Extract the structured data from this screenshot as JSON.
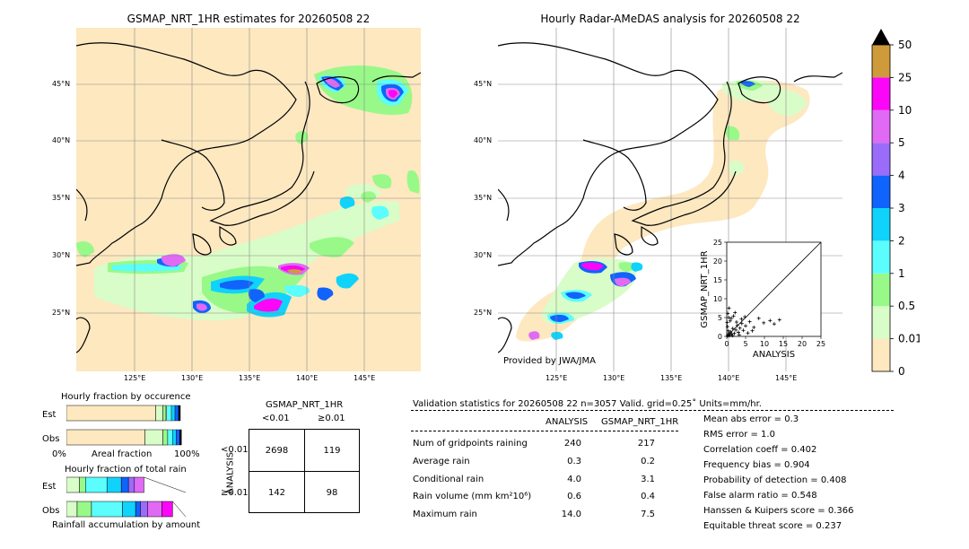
{
  "left_map": {
    "title": "GSMAP_NRT_1HR estimates for 20260508 22",
    "lat_labels": [
      "45°N",
      "40°N",
      "35°N",
      "30°N",
      "25°N"
    ],
    "lon_labels": [
      "125°E",
      "130°E",
      "135°E",
      "140°E",
      "145°E"
    ]
  },
  "right_map": {
    "title": "Hourly Radar-AMeDAS analysis for 20260508 22",
    "lat_labels": [
      "45°N",
      "40°N",
      "35°N",
      "30°N",
      "25°N"
    ],
    "lon_labels": [
      "125°E",
      "130°E",
      "135°E",
      "140°E",
      "145°E"
    ],
    "credit": "Provided by JWA/JMA"
  },
  "colorbar": {
    "labels": [
      "0",
      "0.01",
      "0.5",
      "1",
      "2",
      "3",
      "4",
      "5",
      "10",
      "25",
      "50"
    ],
    "colors": [
      "#fde8c0",
      "#d9fdc8",
      "#98f989",
      "#5bfdfd",
      "#10d3fb",
      "#1063fb",
      "#9a6cf9",
      "#e06af4",
      "#fb06f6",
      "#cf9a3a"
    ],
    "extend_color": "#000000"
  },
  "chart_data": [
    {
      "type": "scatter",
      "xlabel": "ANALYSIS",
      "ylabel": "GSMAP_NRT_1HR",
      "xlim": [
        0,
        25
      ],
      "ylim": [
        0,
        25
      ],
      "xticks": [
        "0",
        "5",
        "10",
        "15",
        "20",
        "25"
      ],
      "yticks": [
        "0",
        "5",
        "10",
        "15",
        "20",
        "25"
      ],
      "diagonal": true,
      "points": [
        [
          0.2,
          0.1
        ],
        [
          0.3,
          0.5
        ],
        [
          0.5,
          0.2
        ],
        [
          0.7,
          0.9
        ],
        [
          0.4,
          1.5
        ],
        [
          0.8,
          0.3
        ],
        [
          1.0,
          1.2
        ],
        [
          1.3,
          0.6
        ],
        [
          1.6,
          2.1
        ],
        [
          2.0,
          0.8
        ],
        [
          2.4,
          1.7
        ],
        [
          2.8,
          2.9
        ],
        [
          3.1,
          1.1
        ],
        [
          3.5,
          2.2
        ],
        [
          4.0,
          3.4
        ],
        [
          4.4,
          1.6
        ],
        [
          5.0,
          2.8
        ],
        [
          6.1,
          3.9
        ],
        [
          7.2,
          2.4
        ],
        [
          8.5,
          4.8
        ],
        [
          9.8,
          3.6
        ],
        [
          11.5,
          4.2
        ],
        [
          12.6,
          3.3
        ],
        [
          14.0,
          4.4
        ],
        [
          0.1,
          3.7
        ],
        [
          0.3,
          6.1
        ],
        [
          0.6,
          7.5
        ],
        [
          1.2,
          4.8
        ],
        [
          1.8,
          5.4
        ],
        [
          2.6,
          3.8
        ],
        [
          0.2,
          2.6
        ],
        [
          1.5,
          0.2
        ],
        [
          3.3,
          0.4
        ],
        [
          5.6,
          0.9
        ],
        [
          0.9,
          4.1
        ],
        [
          2.2,
          6.3
        ],
        [
          4.8,
          5.2
        ],
        [
          6.8,
          1.5
        ],
        [
          0.5,
          5.0
        ],
        [
          3.9,
          4.6
        ]
      ]
    },
    {
      "type": "bar",
      "title": "Hourly fraction by occurence",
      "categories": [
        "Est",
        "Obs"
      ],
      "xlabel": "Areal fraction",
      "x_left_label": "0%",
      "x_right_label": "100%",
      "series": [
        {
          "values": [
            0.749,
            0.659
          ]
        },
        {
          "values": [
            0.06,
            0.15
          ]
        },
        {
          "values": [
            0.025,
            0.04
          ]
        }
      ]
    },
    {
      "type": "bar",
      "title": "Hourly fraction of total rain",
      "categories": [
        "Est",
        "Obs"
      ],
      "xlabel": "Rainfall accumulation by amount",
      "series": [
        {
          "values": [
            0.11,
            0.09
          ]
        },
        {
          "values": [
            0.05,
            0.12
          ]
        },
        {
          "values": [
            0.18,
            0.26
          ]
        },
        {
          "values": [
            0.12,
            0.11
          ]
        },
        {
          "values": [
            0.06,
            0.04
          ]
        },
        {
          "values": [
            0.05,
            0.06
          ]
        },
        {
          "values": [
            0.08,
            0.12
          ]
        },
        {
          "values": [
            0.0,
            0.09
          ]
        }
      ]
    },
    {
      "type": "table",
      "title": "GSMAP_NRT_1HR",
      "col_headers": [
        "<0.01",
        "≥0.01"
      ],
      "row_axis_label": "ANALYSIS",
      "row_headers": [
        "<0.01",
        "≥0.01"
      ],
      "cells": [
        [
          "2698",
          "119"
        ],
        [
          "142",
          "98"
        ]
      ]
    }
  ],
  "validation": {
    "header": "Validation statistics for 20260508 22  n=3057 Valid. grid=0.25˚ Units=mm/hr.",
    "col1": "ANALYSIS",
    "col2": "GSMAP_NRT_1HR",
    "rows": [
      {
        "label": "Num of gridpoints raining",
        "a": "240",
        "g": "217"
      },
      {
        "label": "Average rain",
        "a": "0.3",
        "g": "0.2"
      },
      {
        "label": "Conditional rain",
        "a": "4.0",
        "g": "3.1"
      },
      {
        "label": "Rain volume (mm km²10⁶)",
        "a": "0.6",
        "g": "0.4"
      },
      {
        "label": "Maximum rain",
        "a": "14.0",
        "g": "7.5"
      }
    ],
    "scores": [
      "Mean abs error =    0.3",
      "RMS error =    1.0",
      "Correlation coeff =  0.402",
      "Frequency bias =  0.904",
      "Probability of detection =  0.408",
      "False alarm ratio =  0.548",
      "Hanssen & Kuipers score =  0.366",
      "Equitable threat score =  0.237"
    ]
  }
}
